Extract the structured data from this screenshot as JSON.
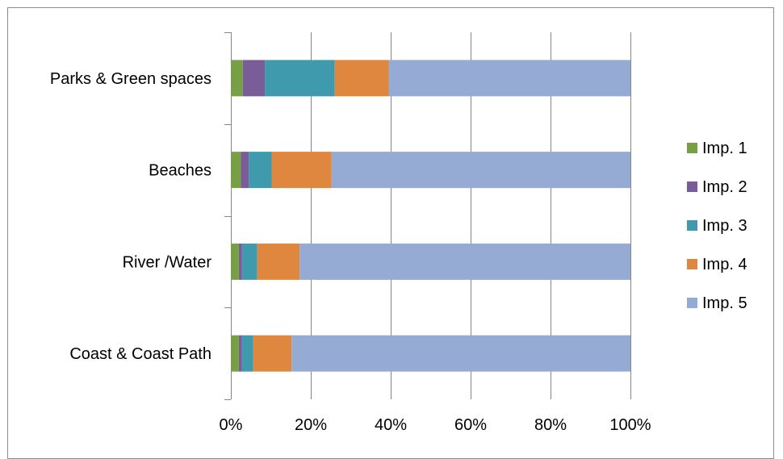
{
  "chart_data": {
    "type": "bar",
    "orientation": "horizontal",
    "stacked": "percent",
    "title": "",
    "xlabel": "",
    "ylabel": "",
    "categories": [
      "Parks & Green spaces",
      "Beaches",
      "River /Water",
      "Coast & Coast Path"
    ],
    "xlim": [
      0,
      100
    ],
    "x_ticks": [
      "0%",
      "20%",
      "40%",
      "60%",
      "80%",
      "100%"
    ],
    "grid": "vertical",
    "legend_position": "right",
    "series": [
      {
        "name": "Imp. 1",
        "color": "#77a046",
        "values": [
          3.0,
          2.5,
          2.0,
          2.0
        ]
      },
      {
        "name": "Imp. 2",
        "color": "#7a5c99",
        "values": [
          5.5,
          2.0,
          0.8,
          0.8
        ]
      },
      {
        "name": "Imp. 3",
        "color": "#3f9aae",
        "values": [
          17.5,
          5.7,
          3.8,
          2.8
        ]
      },
      {
        "name": "Imp. 4",
        "color": "#e0873f",
        "values": [
          13.5,
          15.0,
          10.6,
          9.6
        ]
      },
      {
        "name": "Imp. 5",
        "color": "#95abd4",
        "values": [
          60.5,
          74.8,
          82.8,
          84.8
        ]
      }
    ]
  }
}
